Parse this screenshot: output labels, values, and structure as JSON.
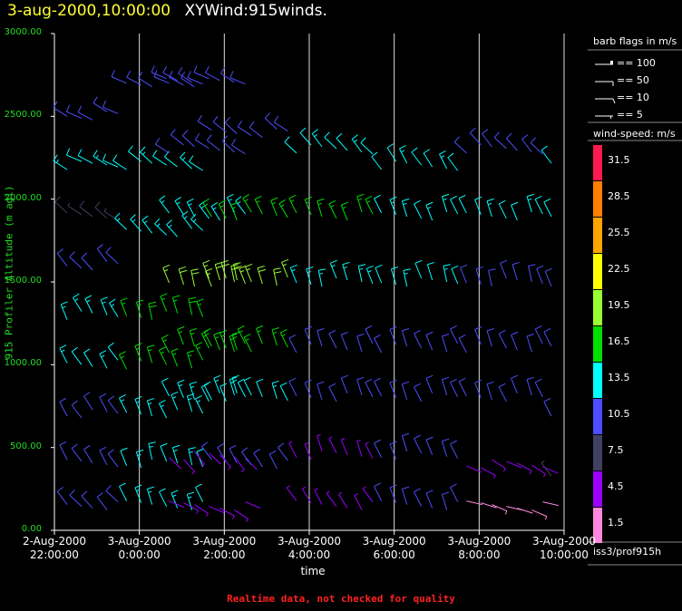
{
  "header": {
    "date_title": "3-aug-2000,10:00:00",
    "plot_name": "XYWind:915winds."
  },
  "footer": {
    "warning": "Realtime data, not checked for quality"
  },
  "legend": {
    "barb_title": "barb flags in m/s",
    "barb_items": [
      {
        "label": "== 100"
      },
      {
        "label": "== 50"
      },
      {
        "label": "== 10"
      },
      {
        "label": "== 5"
      }
    ],
    "speed_title": "wind-speed: m/s",
    "speed_scale": [
      {
        "label": "31.5",
        "color": "#ff1a4d"
      },
      {
        "label": "28.5",
        "color": "#ff8000"
      },
      {
        "label": "25.5",
        "color": "#ffa500"
      },
      {
        "label": "22.5",
        "color": "#ffff00"
      },
      {
        "label": "19.5",
        "color": "#99ff33"
      },
      {
        "label": "16.5",
        "color": "#00dd00"
      },
      {
        "label": "13.5",
        "color": "#00ffff"
      },
      {
        "label": "10.5",
        "color": "#4d4dff"
      },
      {
        "label": "7.5",
        "color": "#404060"
      },
      {
        "label": "4.5",
        "color": "#9900ff"
      },
      {
        "label": "1.5",
        "color": "#ff88dd"
      }
    ],
    "source": "iss3/prof915h"
  },
  "chart_data": {
    "type": "scatter",
    "xlabel": "time",
    "ylabel": "915 Profiler Altitude (m agl)",
    "ylim": [
      0,
      3000
    ],
    "y_ticks": [
      "0.00",
      "500.00",
      "1000.00",
      "1500.00",
      "2000.00",
      "2500.00",
      "3000.00"
    ],
    "x_ticks": [
      {
        "date": "2-Aug-2000",
        "time": "22:00:00"
      },
      {
        "date": "3-Aug-2000",
        "time": "0:00:00"
      },
      {
        "date": "3-Aug-2000",
        "time": "2:00:00"
      },
      {
        "date": "3-Aug-2000",
        "time": "4:00:00"
      },
      {
        "date": "3-Aug-2000",
        "time": "6:00:00"
      },
      {
        "date": "3-Aug-2000",
        "time": "8:00:00"
      },
      {
        "date": "3-Aug-2000",
        "time": "10:00:00"
      }
    ],
    "grid": "vertical lines at tick times",
    "series": [
      {
        "time": "2-Aug-2000 22:00",
        "profile": [
          {
            "alt": 150,
            "speed": 9,
            "dir": 320
          },
          {
            "alt": 400,
            "speed": 10,
            "dir": 330
          },
          {
            "alt": 700,
            "speed": 11,
            "dir": 330
          },
          {
            "alt": 1000,
            "speed": 12,
            "dir": 330
          },
          {
            "alt": 1300,
            "speed": 14,
            "dir": 335
          },
          {
            "alt": 1600,
            "speed": 9,
            "dir": 320
          },
          {
            "alt": 1900,
            "speed": 8,
            "dir": 310
          },
          {
            "alt": 2200,
            "speed": 12,
            "dir": 300
          },
          {
            "alt": 2500,
            "speed": 11,
            "dir": 300
          }
        ]
      },
      {
        "time": "3-Aug-2000 0:00",
        "profile": [
          {
            "alt": 150,
            "speed": 13,
            "dir": 340
          },
          {
            "alt": 400,
            "speed": 13,
            "dir": 345
          },
          {
            "alt": 700,
            "speed": 14,
            "dir": 340
          },
          {
            "alt": 1000,
            "speed": 16,
            "dir": 340
          },
          {
            "alt": 1300,
            "speed": 17,
            "dir": 345
          },
          {
            "alt": 1800,
            "speed": 14,
            "dir": 320
          },
          {
            "alt": 2200,
            "speed": 12,
            "dir": 310
          },
          {
            "alt": 2700,
            "speed": 10,
            "dir": 300
          }
        ]
      },
      {
        "time": "3-Aug-2000 1:00",
        "profile": [
          {
            "alt": 150,
            "speed": 3,
            "dir": 120
          },
          {
            "alt": 450,
            "speed": 3,
            "dir": 140
          },
          {
            "alt": 800,
            "speed": 13,
            "dir": 340
          },
          {
            "alt": 1100,
            "speed": 15,
            "dir": 340
          },
          {
            "alt": 1500,
            "speed": 18,
            "dir": 345
          },
          {
            "alt": 1900,
            "speed": 14,
            "dir": 330
          },
          {
            "alt": 2300,
            "speed": 11,
            "dir": 310
          },
          {
            "alt": 2700,
            "speed": 10,
            "dir": 300
          }
        ]
      },
      {
        "time": "3-Aug-2000 2:00",
        "profile": [
          {
            "alt": 400,
            "speed": 10,
            "dir": 330
          },
          {
            "alt": 800,
            "speed": 12,
            "dir": 340
          },
          {
            "alt": 1100,
            "speed": 15,
            "dir": 340
          },
          {
            "alt": 1500,
            "speed": 18,
            "dir": 345
          },
          {
            "alt": 1900,
            "speed": 15,
            "dir": 335
          },
          {
            "alt": 2400,
            "speed": 10,
            "dir": 310
          }
        ]
      },
      {
        "time": "3-Aug-2000 4:00",
        "profile": [
          {
            "alt": 150,
            "speed": 5,
            "dir": 330
          },
          {
            "alt": 450,
            "speed": 5,
            "dir": 340
          },
          {
            "alt": 800,
            "speed": 10,
            "dir": 340
          },
          {
            "alt": 1100,
            "speed": 11,
            "dir": 340
          },
          {
            "alt": 1500,
            "speed": 14,
            "dir": 345
          },
          {
            "alt": 1900,
            "speed": 16,
            "dir": 340
          },
          {
            "alt": 2300,
            "speed": 12,
            "dir": 320
          }
        ]
      },
      {
        "time": "3-Aug-2000 6:00",
        "profile": [
          {
            "alt": 150,
            "speed": 9,
            "dir": 340
          },
          {
            "alt": 450,
            "speed": 9,
            "dir": 340
          },
          {
            "alt": 800,
            "speed": 10,
            "dir": 340
          },
          {
            "alt": 1100,
            "speed": 11,
            "dir": 340
          },
          {
            "alt": 1500,
            "speed": 12,
            "dir": 345
          },
          {
            "alt": 1900,
            "speed": 13,
            "dir": 340
          },
          {
            "alt": 2200,
            "speed": 12,
            "dir": 330
          }
        ]
      },
      {
        "time": "3-Aug-2000 8:00",
        "profile": [
          {
            "alt": 150,
            "speed": 2,
            "dir": 110
          },
          {
            "alt": 400,
            "speed": 3,
            "dir": 120
          },
          {
            "alt": 800,
            "speed": 9,
            "dir": 340
          },
          {
            "alt": 1100,
            "speed": 10,
            "dir": 340
          },
          {
            "alt": 1500,
            "speed": 11,
            "dir": 345
          },
          {
            "alt": 1900,
            "speed": 12,
            "dir": 340
          },
          {
            "alt": 2300,
            "speed": 10,
            "dir": 320
          }
        ]
      },
      {
        "time": "3-Aug-2000 10:00",
        "profile": [
          {
            "alt": 300,
            "speed": 8,
            "dir": 330
          },
          {
            "alt": 700,
            "speed": 9,
            "dir": 340
          },
          {
            "alt": 1100,
            "speed": 10,
            "dir": 340
          },
          {
            "alt": 1500,
            "speed": 11,
            "dir": 345
          },
          {
            "alt": 1900,
            "speed": 12,
            "dir": 340
          },
          {
            "alt": 2200,
            "speed": 12,
            "dir": 330
          }
        ]
      }
    ]
  }
}
